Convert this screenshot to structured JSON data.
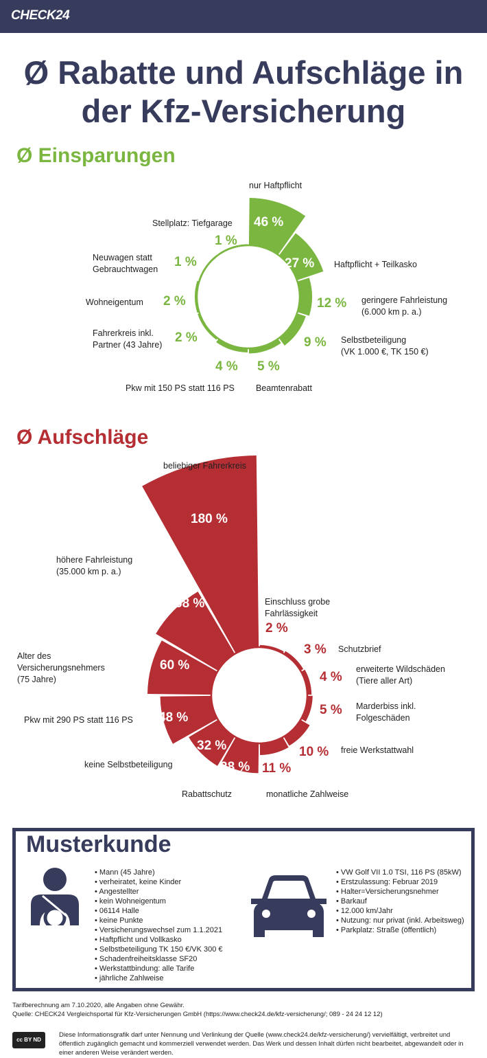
{
  "header": {
    "logo": "CHECK24"
  },
  "title": "Ø Rabatte und Aufschläge in\nder Kfz-Versicherung",
  "colors": {
    "navy": "#373b5c",
    "green": "#7ab640",
    "red": "#b52e33"
  },
  "chart_data": [
    {
      "type": "polar-area",
      "title": "Ø Einsparungen",
      "unit": "%",
      "start": "12 o'clock, clockwise",
      "categories": [
        "nur Haftpflicht",
        "Haftpflicht + Teilkasko",
        "geringere Fahrleistung\n(6.000 km p. a.)",
        "Selbstbeteiligung\n(VK 1.000 €, TK 150 €)",
        "Beamtenrabatt",
        "Pkw mit 150 PS statt 116 PS",
        "Fahrerkreis inkl.\nPartner (43 Jahre)",
        "Wohneigentum",
        "Neuwagen statt\nGebrauchtwagen",
        "Stellplatz: Tiefgarage"
      ],
      "values": [
        46,
        27,
        12,
        9,
        5,
        4,
        2,
        2,
        1,
        1
      ],
      "value_labels": [
        "46 %",
        "27 %",
        "12 %",
        "9 %",
        "5 %",
        "4 %",
        "2 %",
        "2 %",
        "1 %",
        "1 %"
      ]
    },
    {
      "type": "polar-area",
      "title": "Ø Aufschläge",
      "unit": "%",
      "start": "12 o'clock, clockwise",
      "categories": [
        "Einschluss grobe\nFahrlässigkeit",
        "Schutzbrief",
        "erweiterte Wildschäden\n(Tiere aller Art)",
        "Marderbiss inkl.\nFolgeschäden",
        "freie Werkstattwahl",
        "monatliche Zahlweise",
        "Rabattschutz",
        "keine Selbstbeteiligung",
        "Pkw mit 290 PS statt 116 PS",
        "Alter des\nVersicherungsnehmers\n(75 Jahre)",
        "höhere Fahrleistung\n(35.000 km p. a.)",
        "beliebiger Fahrerkreis"
      ],
      "values": [
        2,
        3,
        4,
        5,
        10,
        11,
        28,
        32,
        48,
        60,
        68,
        180
      ],
      "value_labels": [
        "2 %",
        "3 %",
        "4 %",
        "5 %",
        "10 %",
        "11 %",
        "28 %",
        "32 %",
        "48 %",
        "60 %",
        "68 %",
        "180 %"
      ]
    }
  ],
  "musterkunde": {
    "title": "Musterkunde",
    "person": [
      "Mann (45 Jahre)",
      "verheiratet, keine Kinder",
      "Angestellter",
      "kein Wohneigentum",
      "06114 Halle",
      "keine Punkte",
      "Versicherungswechsel zum 1.1.2021",
      "Haftpflicht und Vollkasko",
      "Selbstbeteiligung TK 150 €/VK 300 €",
      "Schadenfreiheitsklasse SF20",
      "Werkstattbindung: alle Tarife",
      "jährliche Zahlweise"
    ],
    "car": [
      "VW Golf VII 1.0 TSI, 116 PS (85kW)",
      "Erstzulassung: Februar 2019",
      "Halter=Versicherungsnehmer",
      "Barkauf",
      "12.000 km/Jahr",
      "Nutzung: nur privat (inkl. Arbeitsweg)",
      "Parkplatz: Straße (öffentlich)"
    ]
  },
  "footer": {
    "line1": "Tarifberechnung am 7.10.2020, alle Angaben ohne Gewähr.",
    "line2": "Quelle: CHECK24 Vergleichsportal für Kfz-Versicherungen GmbH (https://www.check24.de/kfz-versicherung/; 089 - 24 24 12 12)",
    "license_badge": "cc BY ND",
    "license": "Diese Informationsgrafik darf unter Nennung und Verlinkung der Quelle (www.check24.de/kfz-versicherung/) vervielfältigt, verbreitet und öffentlich zugänglich gemacht und kommerziell verwendet werden. Das Werk und dessen Inhalt dürfen nicht bearbeitet, abgewandelt oder in einer anderen Weise verändert werden."
  }
}
